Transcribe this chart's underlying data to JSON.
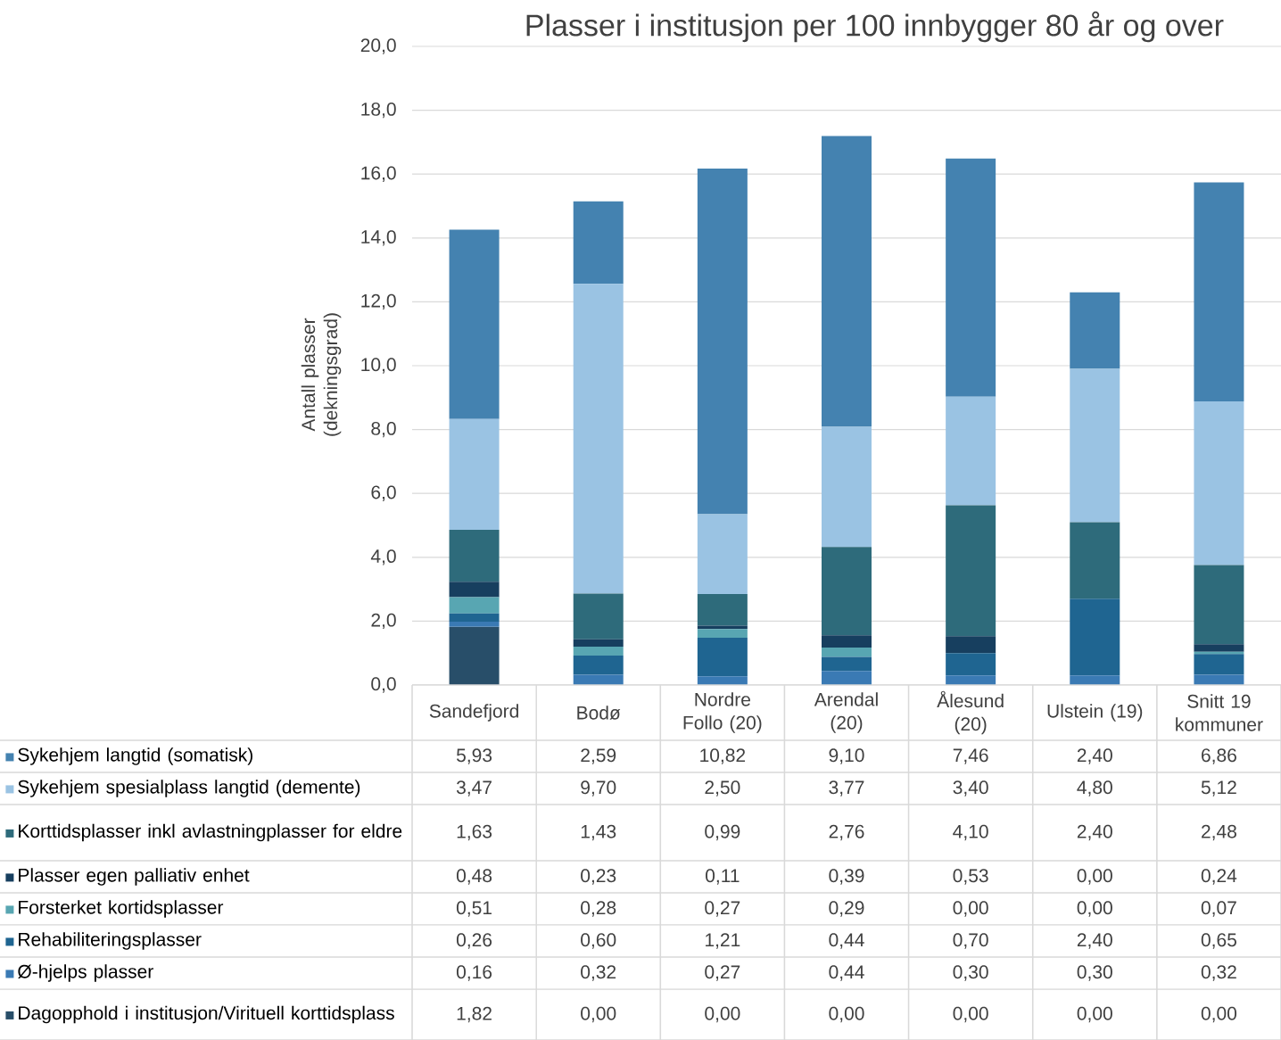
{
  "chart_data": {
    "type": "bar",
    "title": "Plasser i institusjon per 100 innbygger 80 år og over",
    "ylabel": "Antall plasser (dekningsgrad)",
    "categories": [
      "Sandefjord",
      "Bodø",
      "Nordre Follo (20)",
      "Arendal (20)",
      "Ålesund (20)",
      "Ulstein (19)",
      "Snitt 19 kommuner"
    ],
    "stacked": true,
    "grid": "y",
    "legend": "bottom",
    "ylim": [
      0,
      20
    ],
    "yticks": [
      {
        "value": 0,
        "label": "0,0"
      },
      {
        "value": 2,
        "label": "2,0"
      },
      {
        "value": 4,
        "label": "4,0"
      },
      {
        "value": 6,
        "label": "6,0"
      },
      {
        "value": 8,
        "label": "8,0"
      },
      {
        "value": 10,
        "label": "10,0"
      },
      {
        "value": 12,
        "label": "12,0"
      },
      {
        "value": 14,
        "label": "14,0"
      },
      {
        "value": 16,
        "label": "16,0"
      },
      {
        "value": 18,
        "label": "18,0"
      },
      {
        "value": 20,
        "label": "20,0"
      }
    ],
    "series": [
      {
        "name": "Dagopphold i institusjon/Virituell korttidsplass",
        "color": "#284e69",
        "values": [
          1.82,
          0,
          0,
          0,
          0,
          0,
          0
        ],
        "value_labels": [
          "1,82",
          "0,00",
          "0,00",
          "0,00",
          "0,00",
          "0,00",
          "0,00"
        ]
      },
      {
        "name": "Ø-hjelps plasser",
        "color": "#3a7ab4",
        "values": [
          0.16,
          0.32,
          0.27,
          0.44,
          0.3,
          0.3,
          0.32
        ],
        "value_labels": [
          "0,16",
          "0,32",
          "0,27",
          "0,44",
          "0,30",
          "0,30",
          "0,32"
        ]
      },
      {
        "name": "Rehabiliteringsplasser",
        "color": "#1f6591",
        "values": [
          0.26,
          0.6,
          1.21,
          0.44,
          0.7,
          2.4,
          0.65
        ],
        "value_labels": [
          "0,26",
          "0,60",
          "1,21",
          "0,44",
          "0,70",
          "2,40",
          "0,65"
        ]
      },
      {
        "name": "Forsterket kortidsplasser",
        "color": "#58a6b2",
        "values": [
          0.51,
          0.28,
          0.27,
          0.29,
          0,
          0,
          0.07
        ],
        "value_labels": [
          "0,51",
          "0,28",
          "0,27",
          "0,29",
          "0,00",
          "0,00",
          "0,07"
        ]
      },
      {
        "name": "Plasser egen palliativ enhet",
        "color": "#173f5f",
        "values": [
          0.48,
          0.23,
          0.11,
          0.39,
          0.53,
          0,
          0.24
        ],
        "value_labels": [
          "0,48",
          "0,23",
          "0,11",
          "0,39",
          "0,53",
          "0,00",
          "0,24"
        ]
      },
      {
        "name": "Korttidsplasser inkl avlastningplasser for eldre",
        "color": "#2e6b7b",
        "values": [
          1.63,
          1.43,
          0.99,
          2.76,
          4.1,
          2.4,
          2.48
        ],
        "value_labels": [
          "1,63",
          "1,43",
          "0,99",
          "2,76",
          "4,10",
          "2,40",
          "2,48"
        ]
      },
      {
        "name": "Sykehjem spesialplass langtid (demente)",
        "color": "#9ac3e3",
        "values": [
          3.47,
          9.7,
          2.5,
          3.77,
          3.4,
          4.8,
          5.12
        ],
        "value_labels": [
          "3,47",
          "9,70",
          "2,50",
          "3,77",
          "3,40",
          "4,80",
          "5,12"
        ]
      },
      {
        "name": "Sykehjem langtid (somatisk)",
        "color": "#4482b0",
        "values": [
          5.93,
          2.59,
          10.82,
          9.1,
          7.46,
          2.4,
          6.86
        ],
        "value_labels": [
          "5,93",
          "2,59",
          "10,82",
          "9,10",
          "7,46",
          "2,40",
          "6,86"
        ]
      }
    ]
  }
}
